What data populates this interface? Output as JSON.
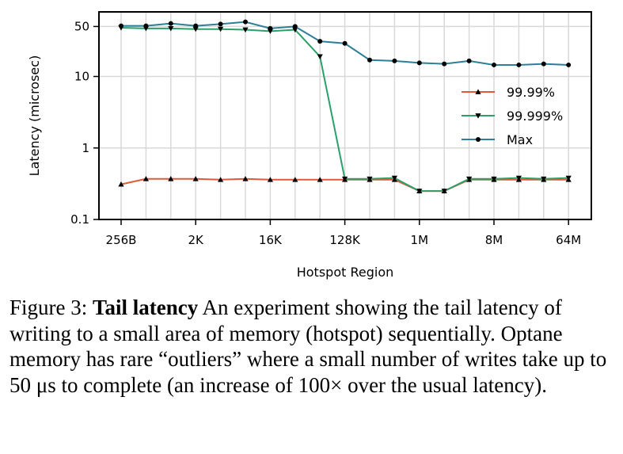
{
  "chart_data": {
    "type": "line",
    "xlabel": "Hotspot Region",
    "ylabel": "Latency (microsec)",
    "yscale": "log",
    "ylim": [
      0.1,
      80
    ],
    "yticks": [
      {
        "value": 0.1,
        "label": "0.1"
      },
      {
        "value": 1,
        "label": "1"
      },
      {
        "value": 10,
        "label": "10"
      },
      {
        "value": 50,
        "label": "50"
      }
    ],
    "x": [
      "256B",
      "512B",
      "1K",
      "2K",
      "4K",
      "8K",
      "16K",
      "32K",
      "64K",
      "128K",
      "256K",
      "512K",
      "1M",
      "2M",
      "4M",
      "8M",
      "16M",
      "32M",
      "64M"
    ],
    "xticks": [
      {
        "index": 0,
        "label": "256B"
      },
      {
        "index": 3,
        "label": "2K"
      },
      {
        "index": 6,
        "label": "16K"
      },
      {
        "index": 9,
        "label": "128K"
      },
      {
        "index": 12,
        "label": "1M"
      },
      {
        "index": 15,
        "label": "8M"
      },
      {
        "index": 18,
        "label": "64M"
      }
    ],
    "grid": true,
    "legend_position": "center-right",
    "series": [
      {
        "name": "99.99%",
        "marker": "triangle-up",
        "color": "#e05a3a",
        "values": [
          0.31,
          0.37,
          0.37,
          0.37,
          0.36,
          0.37,
          0.36,
          0.36,
          0.36,
          0.36,
          0.36,
          0.36,
          0.25,
          0.25,
          0.36,
          0.36,
          0.36,
          0.36,
          0.36
        ]
      },
      {
        "name": "99.999%",
        "marker": "triangle-down",
        "color": "#2aa06a",
        "values": [
          48,
          47,
          47,
          46,
          46,
          45,
          43,
          45,
          19,
          0.37,
          0.37,
          0.38,
          0.25,
          0.25,
          0.37,
          0.37,
          0.38,
          0.37,
          0.38
        ]
      },
      {
        "name": "Max",
        "marker": "circle",
        "color": "#2f7f98",
        "values": [
          51,
          51,
          55,
          51,
          54,
          58,
          47,
          50,
          31,
          29,
          17,
          16.5,
          15.5,
          15,
          16.5,
          14.5,
          14.5,
          15,
          14.5
        ]
      }
    ]
  },
  "caption": {
    "label": "Figure 3:",
    "bold": "Tail latency",
    "text": "An experiment showing the tail latency of writing to a small area of memory (hotspot) sequentially. Optane memory has rare “outliers” where a small number of writes take up to 50 μs to complete (an increase of 100× over the usual latency)."
  }
}
